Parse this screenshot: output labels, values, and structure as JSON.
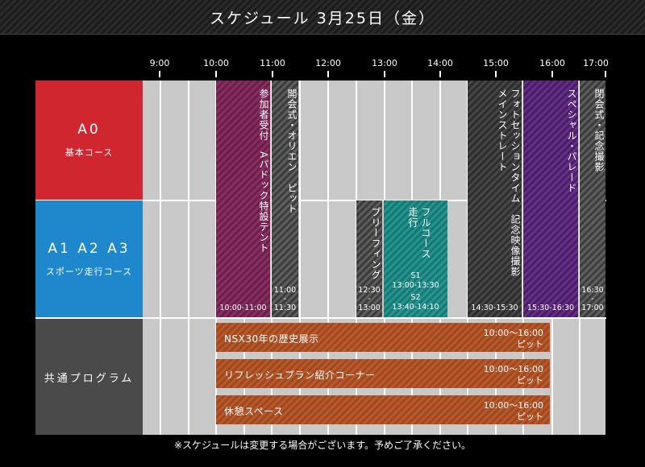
{
  "title": "スケジュール 3月25日（金）",
  "times": [
    "9:00",
    "10:00",
    "11:00",
    "12:00",
    "13:00",
    "14:00",
    "15:00",
    "16:00",
    "17:00"
  ],
  "rows": {
    "a0": {
      "label": "A0",
      "sub": "基本コース"
    },
    "a1": {
      "label": "A1 A2 A3",
      "sub": "スポーツ走行コース"
    },
    "common": {
      "label": "共通プログラム"
    }
  },
  "events": {
    "reception": {
      "text": "参加者受付　Aパドック特設テント",
      "time": "10:00-11:00"
    },
    "opening": {
      "text": "開会式・オリエン　ピット",
      "time_a": "11:00",
      "time_b": "-",
      "time_c": "11:30"
    },
    "briefing": {
      "text": "ブリーフィング",
      "time_a": "12:30",
      "time_b": "-",
      "time_c": "13:00"
    },
    "full": {
      "text": "フルコース走行",
      "s1": "S1",
      "s1_time": "13:00-13:30",
      "s2": "S2",
      "s2_time": "13:40-14:10"
    },
    "photo": {
      "text": "フォトセッションタイム　記念映像撮影　メインストレート",
      "time": "14:30-15:30"
    },
    "parade": {
      "text": "スペシャル・パレード",
      "time": "15:30-16:30"
    },
    "closing": {
      "text": "閉会式・記念撮影",
      "time_a": "16:30",
      "time_b": "-",
      "time_c": "17:00"
    }
  },
  "programs": [
    {
      "name": "NSX30年の歴史展示",
      "time": "10:00〜16:00",
      "loc": "ピット"
    },
    {
      "name": "リフレッシュプラン紹介コーナー",
      "time": "10:00〜16:00",
      "loc": "ピット"
    },
    {
      "name": "休憩スペース",
      "time": "10:00〜16:00",
      "loc": "ピット"
    }
  ],
  "note": "※スケジュールは変更する場合がございます。予めご了承ください。",
  "colors": {
    "a0": "#cf2630",
    "a1": "#1f87cc",
    "common": "#4a4a4a",
    "reception": "#7a2557",
    "full": "#1f8a85",
    "parade": "#572677",
    "program": "#ad5126"
  }
}
